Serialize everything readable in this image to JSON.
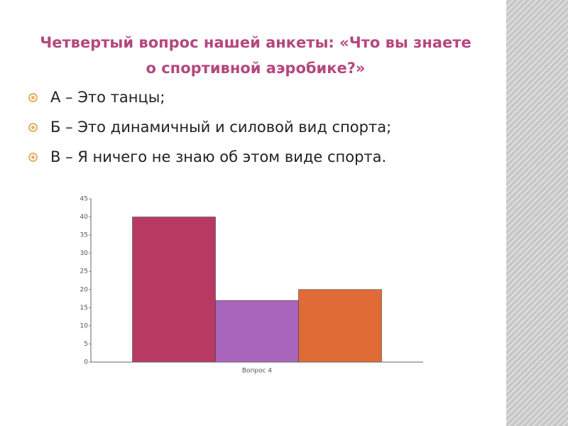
{
  "slide": {
    "title": "Четвертый вопрос нашей анкеты: «Что вы знаете о спортивной аэробике?»",
    "bullets": [
      "А – Это танцы;",
      "Б – Это динамичный и силовой вид спорта;",
      "В – Я ничего не знаю об этом виде спорта."
    ]
  },
  "chart_data": {
    "type": "bar",
    "categories": [
      "Вопрос 4"
    ],
    "series": [
      {
        "color": "#b83a62",
        "values": [
          40
        ]
      },
      {
        "color": "#a965bb",
        "values": [
          17
        ]
      },
      {
        "color": "#e06b37",
        "values": [
          20
        ]
      }
    ],
    "ylim": [
      0,
      45
    ],
    "yticks": [
      0,
      5,
      10,
      15,
      20,
      25,
      30,
      35,
      40,
      45
    ],
    "grid": false
  }
}
